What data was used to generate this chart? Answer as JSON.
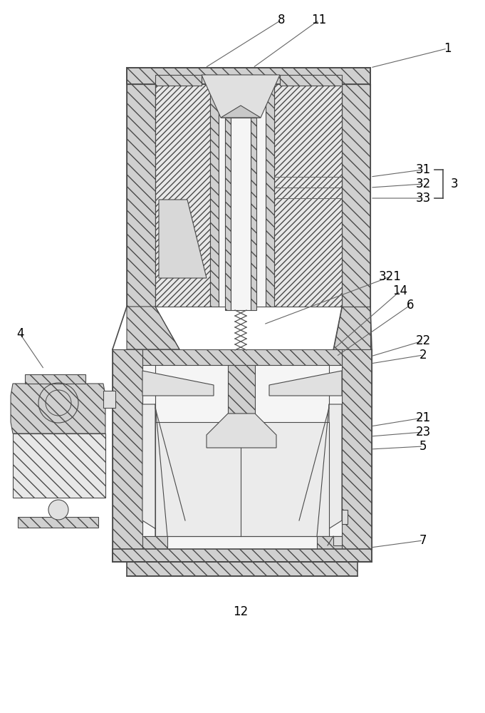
{
  "bg_color": "#ffffff",
  "lc": "#4a4a4a",
  "lc_thin": "#888888",
  "hatch_fc": "#d0d0d0",
  "hatch_fc2": "#e8e8e8",
  "white": "#ffffff",
  "lw": 0.8,
  "lw_thick": 1.2,
  "hatch_dense": "////",
  "hatch_back": "\\\\\\\\",
  "labels": [
    [
      "1",
      628,
      68,
      520,
      95,
      true
    ],
    [
      "8",
      395,
      28,
      288,
      95,
      true
    ],
    [
      "11",
      448,
      28,
      355,
      95,
      true
    ],
    [
      "31",
      594,
      238,
      520,
      248,
      true
    ],
    [
      "32",
      594,
      258,
      520,
      263,
      true
    ],
    [
      "33",
      594,
      278,
      520,
      278,
      true
    ],
    [
      "3",
      638,
      258,
      610,
      258,
      false
    ],
    [
      "321",
      548,
      388,
      370,
      455,
      true
    ],
    [
      "14",
      562,
      408,
      468,
      490,
      true
    ],
    [
      "6",
      576,
      428,
      472,
      500,
      true
    ],
    [
      "22",
      594,
      478,
      520,
      500,
      true
    ],
    [
      "2",
      594,
      498,
      520,
      510,
      true
    ],
    [
      "4",
      28,
      468,
      62,
      518,
      true
    ],
    [
      "21",
      594,
      586,
      520,
      598,
      true
    ],
    [
      "23",
      594,
      606,
      520,
      612,
      true
    ],
    [
      "5",
      594,
      626,
      520,
      630,
      true
    ],
    [
      "7",
      594,
      758,
      520,
      768,
      true
    ],
    [
      "12",
      338,
      858,
      338,
      838,
      false
    ]
  ]
}
